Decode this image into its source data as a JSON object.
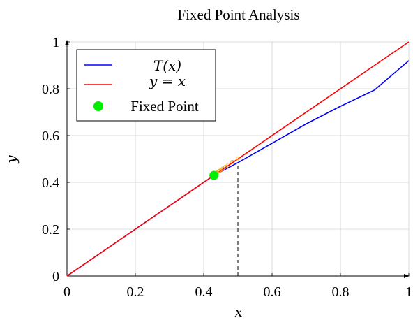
{
  "chart_data": {
    "type": "line",
    "title": "Fixed Point Analysis",
    "xlabel": "x",
    "ylabel": "y",
    "xlim": [
      0,
      1
    ],
    "ylim": [
      0,
      1
    ],
    "xticks": [
      "0",
      "0.2",
      "0.4",
      "0.6",
      "0.8",
      "1"
    ],
    "yticks": [
      "0",
      "0.2",
      "0.4",
      "0.6",
      "0.8",
      "1"
    ],
    "grid": true,
    "legend_position": "top-left",
    "legend": [
      "T(x)",
      "y = x",
      "Fixed Point"
    ],
    "series": [
      {
        "name": "T(x)",
        "color": "#0000ff",
        "x": [
          0,
          0.1,
          0.2,
          0.3,
          0.4,
          0.43,
          0.5,
          0.6,
          0.7,
          0.8,
          0.9,
          1.0
        ],
        "y": [
          0,
          0.1,
          0.2,
          0.3,
          0.4,
          0.43,
          0.484,
          0.567,
          0.65,
          0.725,
          0.795,
          0.92
        ]
      },
      {
        "name": "y = x",
        "color": "#ff0000",
        "x": [
          0,
          1
        ],
        "y": [
          0,
          1
        ]
      }
    ],
    "fixed_point": {
      "name": "Fixed Point",
      "x": 0.43,
      "y": 0.43,
      "color": "#00ee00"
    },
    "iterates": [
      0.5,
      0.484,
      0.472,
      0.463,
      0.456,
      0.451,
      0.447,
      0.443,
      0.44,
      0.438
    ],
    "reference_line": {
      "x": 0.5,
      "y_from": 0,
      "y_to": 0.484,
      "style": "dashed"
    }
  }
}
